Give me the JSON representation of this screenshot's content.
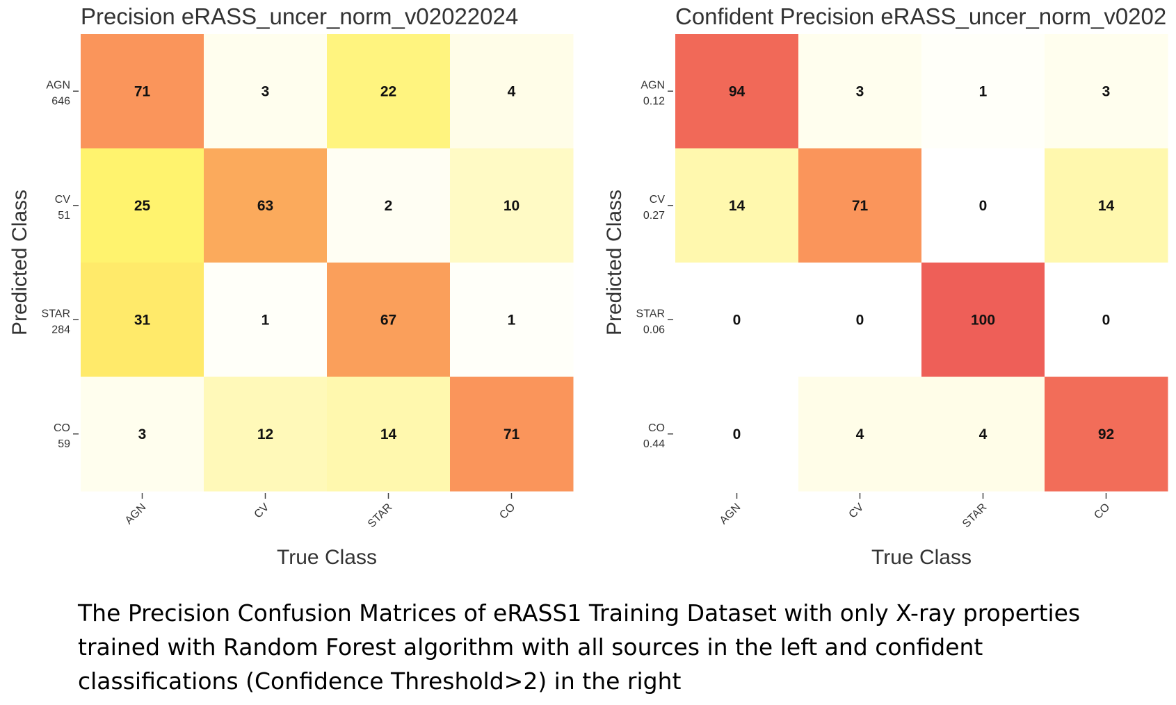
{
  "chart_data": [
    {
      "type": "heatmap",
      "title": "Precision eRASS_uncer_norm_v02022024",
      "xlabel": "True Class",
      "ylabel": "Predicted Class",
      "x_categories": [
        "AGN",
        "CV",
        "STAR",
        "CO"
      ],
      "y_categories": [
        {
          "name": "AGN",
          "value": "646"
        },
        {
          "name": "CV",
          "value": "51"
        },
        {
          "name": "STAR",
          "value": "284"
        },
        {
          "name": "CO",
          "value": "59"
        }
      ],
      "values": [
        [
          71,
          3,
          22,
          4
        ],
        [
          25,
          63,
          2,
          10
        ],
        [
          31,
          1,
          67,
          1
        ],
        [
          3,
          12,
          14,
          71
        ]
      ],
      "value_range": [
        0,
        100
      ],
      "colorscale": [
        "#ffffff",
        "#fff36e",
        "#fdcd5e",
        "#f98a5a",
        "#ee5f58"
      ]
    },
    {
      "type": "heatmap",
      "title": "Confident Precision eRASS_uncer_norm_v0202",
      "xlabel": "True Class",
      "ylabel": "Predicted Class",
      "x_categories": [
        "AGN",
        "CV",
        "STAR",
        "CO"
      ],
      "y_categories": [
        {
          "name": "AGN",
          "value": "0.12"
        },
        {
          "name": "CV",
          "value": "0.27"
        },
        {
          "name": "STAR",
          "value": "0.06"
        },
        {
          "name": "CO",
          "value": "0.44"
        }
      ],
      "values": [
        [
          94,
          3,
          1,
          3
        ],
        [
          14,
          71,
          0,
          14
        ],
        [
          0,
          0,
          100,
          0
        ],
        [
          0,
          4,
          4,
          92
        ]
      ],
      "value_range": [
        0,
        100
      ],
      "colorscale": [
        "#ffffff",
        "#fff36e",
        "#fdcd5e",
        "#f98a5a",
        "#ee5f58"
      ]
    }
  ],
  "caption": "The Precision Confusion Matrices of eRASS1 Training Dataset with only X-ray properties trained with Random Forest algorithm with all sources in the left and confident classifications (Confidence Threshold>2) in the right"
}
